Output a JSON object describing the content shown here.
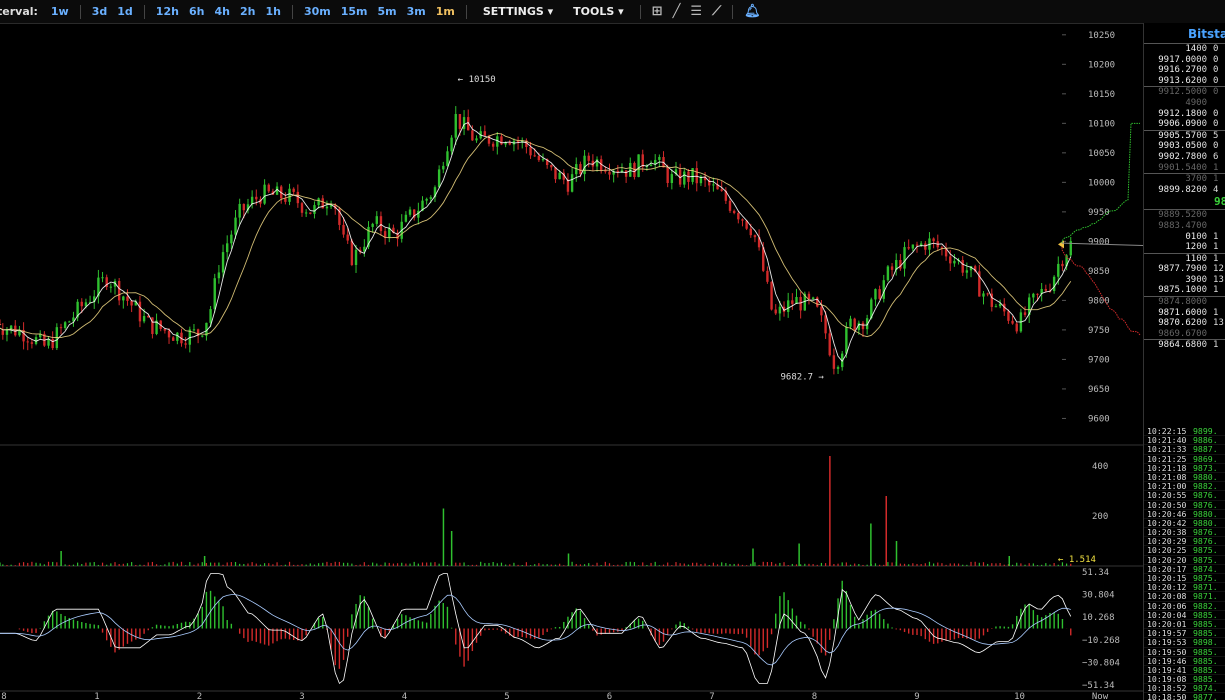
{
  "toolbar": {
    "interval_label": "terval:",
    "intervals": [
      {
        "label": "1w",
        "active": false,
        "group": 0
      },
      {
        "label": "3d",
        "active": false,
        "group": 1
      },
      {
        "label": "1d",
        "active": false,
        "group": 1
      },
      {
        "label": "12h",
        "active": false,
        "group": 2
      },
      {
        "label": "6h",
        "active": false,
        "group": 2
      },
      {
        "label": "4h",
        "active": false,
        "group": 2
      },
      {
        "label": "2h",
        "active": false,
        "group": 2
      },
      {
        "label": "1h",
        "active": false,
        "group": 2
      },
      {
        "label": "30m",
        "active": false,
        "group": 3
      },
      {
        "label": "15m",
        "active": false,
        "group": 3
      },
      {
        "label": "5m",
        "active": false,
        "group": 3
      },
      {
        "label": "3m",
        "active": false,
        "group": 3
      },
      {
        "label": "1m",
        "active": true,
        "group": 3
      }
    ],
    "settings_label": "SETTINGS ▾",
    "tools_label": "TOOLS ▾",
    "icons": [
      "crosshair-icon",
      "line-draw-icon",
      "horizontal-lines-icon",
      "fan-draw-icon",
      "bell-icon"
    ]
  },
  "sidebar": {
    "exchange_title": "Bitstan",
    "last_price": "98",
    "order_book": [
      {
        "price": "14",
        "size": "00",
        "amt": "0",
        "dim": false
      },
      {
        "price": "9917.0",
        "size": "000",
        "amt": "0",
        "dim": false
      },
      {
        "price": "9916.27",
        "size": "00",
        "amt": "0",
        "dim": false
      },
      {
        "price": "9913.62",
        "size": "00",
        "amt": "0",
        "dim": false
      },
      {
        "price": "9912.5000",
        "size": "",
        "amt": "0",
        "dim": true
      },
      {
        "price": "4900",
        "size": "",
        "amt": "",
        "dim": true
      },
      {
        "price": "9912.18",
        "size": "00",
        "amt": "0",
        "dim": false
      },
      {
        "price": "9906.09",
        "size": "00",
        "amt": "0",
        "dim": false
      },
      {
        "price": "9905.57",
        "size": "00",
        "amt": "5",
        "dim": false
      },
      {
        "price": "9903.05",
        "size": "00",
        "amt": "0",
        "dim": false
      },
      {
        "price": "9902.78",
        "size": "00",
        "amt": "6",
        "dim": false
      },
      {
        "price": "9901.5400",
        "size": "",
        "amt": "1",
        "dim": true
      },
      {
        "price": "3700",
        "size": "",
        "amt": "1",
        "dim": true
      },
      {
        "price": "9899.82",
        "size": "00",
        "amt": "4",
        "dim": false
      }
    ],
    "order_book_bids": [
      {
        "price": "9889.5200",
        "size": "",
        "amt": "",
        "dim": true
      },
      {
        "price": "9883.4700",
        "size": "",
        "amt": "",
        "dim": true
      },
      {
        "price": "01",
        "size": "00",
        "amt": "1",
        "dim": false
      },
      {
        "price": "12",
        "size": "00",
        "amt": "1",
        "dim": false
      },
      {
        "price": "11",
        "size": "00",
        "amt": "1",
        "dim": false
      },
      {
        "price": "9877.79",
        "size": "00",
        "amt": "12",
        "dim": false
      },
      {
        "price": "39",
        "size": "00",
        "amt": "13",
        "dim": false
      },
      {
        "price": "9875.10",
        "size": "00",
        "amt": "1",
        "dim": false
      },
      {
        "price": "9874.8000",
        "size": "",
        "amt": "",
        "dim": true
      },
      {
        "price": "9871.60",
        "size": "00",
        "amt": "1",
        "dim": false
      },
      {
        "price": "9870.62",
        "size": "00",
        "amt": "13",
        "dim": false
      },
      {
        "price": "9869.6700",
        "size": "",
        "amt": "",
        "dim": true
      },
      {
        "price": "9864.68",
        "size": "00",
        "amt": "1",
        "dim": false
      }
    ],
    "trades": [
      {
        "time": "10:22:15",
        "price": "9899."
      },
      {
        "time": "10:21:40",
        "price": "9886."
      },
      {
        "time": "10:21:33",
        "price": "9887."
      },
      {
        "time": "10:21:25",
        "price": "9869."
      },
      {
        "time": "10:21:18",
        "price": "9873."
      },
      {
        "time": "10:21:08",
        "price": "9880."
      },
      {
        "time": "10:21:00",
        "price": "9882."
      },
      {
        "time": "10:20:55",
        "price": "9876."
      },
      {
        "time": "10:20:50",
        "price": "9876."
      },
      {
        "time": "10:20:46",
        "price": "9880."
      },
      {
        "time": "10:20:42",
        "price": "9880."
      },
      {
        "time": "10:20:38",
        "price": "9876."
      },
      {
        "time": "10:20:29",
        "price": "9876."
      },
      {
        "time": "10:20:25",
        "price": "9875."
      },
      {
        "time": "10:20:20",
        "price": "9875."
      },
      {
        "time": "10:20:17",
        "price": "9874."
      },
      {
        "time": "10:20:15",
        "price": "9875."
      },
      {
        "time": "10:20:12",
        "price": "9871."
      },
      {
        "time": "10:20:08",
        "price": "9871."
      },
      {
        "time": "10:20:06",
        "price": "9882."
      },
      {
        "time": "10:20:04",
        "price": "9885."
      },
      {
        "time": "10:20:01",
        "price": "9885."
      },
      {
        "time": "10:19:57",
        "price": "9885."
      },
      {
        "time": "10:19:53",
        "price": "9898."
      },
      {
        "time": "10:19:50",
        "price": "9885."
      },
      {
        "time": "10:19:46",
        "price": "9885."
      },
      {
        "time": "10:19:41",
        "price": "9885."
      },
      {
        "time": "10:19:08",
        "price": "9885."
      },
      {
        "time": "10:18:52",
        "price": "9874."
      },
      {
        "time": "10:18:50",
        "price": "9877."
      }
    ]
  },
  "chart_data": [
    {
      "type": "candlestick",
      "panel": "price",
      "x_ticks": [
        "8",
        "1",
        "2",
        "3",
        "4",
        "5",
        "6",
        "7",
        "8",
        "9",
        "10",
        "Now"
      ],
      "y_ticks": [
        9600,
        9650,
        9700,
        9750,
        9800,
        9850,
        9900,
        9950,
        10000,
        10050,
        10100,
        10150,
        10200,
        10250
      ],
      "ylim": [
        9555,
        10270
      ],
      "annotations": [
        {
          "label": "← 10150",
          "x": 4.5,
          "y": 10150
        },
        {
          "label": "9682.7 →",
          "x": 8.15,
          "y": 9682.7
        }
      ],
      "close_path": [
        [
          0,
          9760
        ],
        [
          0.3,
          9745
        ],
        [
          0.5,
          9720
        ],
        [
          0.7,
          9760
        ],
        [
          0.9,
          9800
        ],
        [
          1.1,
          9840
        ],
        [
          1.3,
          9800
        ],
        [
          1.5,
          9760
        ],
        [
          1.8,
          9740
        ],
        [
          2.0,
          9745
        ],
        [
          2.1,
          9780
        ],
        [
          2.2,
          9870
        ],
        [
          2.4,
          9950
        ],
        [
          2.6,
          9980
        ],
        [
          2.9,
          9975
        ],
        [
          3.1,
          9950
        ],
        [
          3.3,
          9980
        ],
        [
          3.4,
          9900
        ],
        [
          3.5,
          9870
        ],
        [
          3.7,
          9930
        ],
        [
          3.9,
          9910
        ],
        [
          4.1,
          9950
        ],
        [
          4.3,
          9990
        ],
        [
          4.4,
          10060
        ],
        [
          4.5,
          10110
        ],
        [
          4.7,
          10070
        ],
        [
          5.0,
          10080
        ],
        [
          5.2,
          10060
        ],
        [
          5.4,
          10020
        ],
        [
          5.6,
          10000
        ],
        [
          5.8,
          10040
        ],
        [
          6.0,
          10030
        ],
        [
          6.2,
          10020
        ],
        [
          6.4,
          10045
        ],
        [
          6.6,
          10005
        ],
        [
          6.8,
          10010
        ],
        [
          7.0,
          9990
        ],
        [
          7.2,
          9960
        ],
        [
          7.4,
          9920
        ],
        [
          7.5,
          9850
        ],
        [
          7.6,
          9770
        ],
        [
          7.8,
          9800
        ],
        [
          8.0,
          9790
        ],
        [
          8.1,
          9750
        ],
        [
          8.2,
          9690
        ],
        [
          8.35,
          9760
        ],
        [
          8.5,
          9770
        ],
        [
          8.7,
          9840
        ],
        [
          8.9,
          9880
        ],
        [
          9.1,
          9900
        ],
        [
          9.3,
          9880
        ],
        [
          9.5,
          9850
        ],
        [
          9.7,
          9800
        ],
        [
          9.85,
          9780
        ],
        [
          10.0,
          9760
        ],
        [
          10.1,
          9790
        ],
        [
          10.3,
          9830
        ],
        [
          10.4,
          9870
        ],
        [
          10.5,
          9895
        ]
      ],
      "series": [
        {
          "name": "",
          "color": "#ffffff",
          "kind": "fast-ma"
        },
        {
          "name": "",
          "color": "#e8d080",
          "kind": "slow-ma"
        }
      ],
      "last_value": 9895
    },
    {
      "type": "bar",
      "panel": "volume",
      "y_ticks": [
        200,
        400
      ],
      "ylim": [
        0,
        480
      ],
      "last_value_label": "← 1.514",
      "spikes": [
        {
          "x": 0.65,
          "value": 60
        },
        {
          "x": 2.05,
          "value": 40
        },
        {
          "x": 4.38,
          "value": 230
        },
        {
          "x": 4.46,
          "value": 140
        },
        {
          "x": 5.6,
          "value": 50
        },
        {
          "x": 7.4,
          "value": 70
        },
        {
          "x": 7.85,
          "value": 90
        },
        {
          "x": 8.15,
          "value": 440
        },
        {
          "x": 8.55,
          "value": 170
        },
        {
          "x": 8.7,
          "value": 280
        },
        {
          "x": 8.8,
          "value": 100
        },
        {
          "x": 9.9,
          "value": 40
        }
      ]
    },
    {
      "type": "histogram",
      "panel": "macd",
      "y_ticks": [
        "51.34",
        "30.804",
        "10.268",
        "−10.268",
        "−30.804",
        "−51.34"
      ],
      "ylim": [
        -56,
        56
      ]
    }
  ]
}
